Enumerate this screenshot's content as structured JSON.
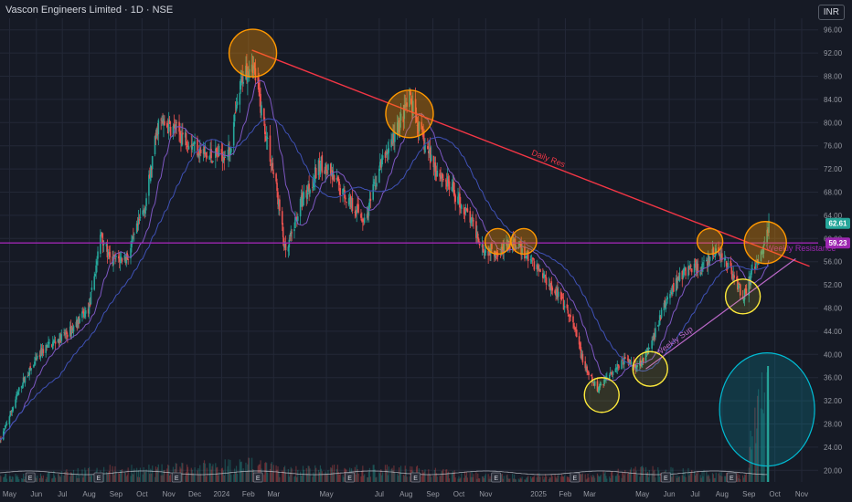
{
  "header": {
    "title": "Vascon Engineers Limited · 1D · NSE",
    "currency": "INR"
  },
  "colors": {
    "bg": "#161a25",
    "grid": "#232837",
    "up": "#26a69a",
    "down": "#ef5350",
    "ma1": "#7e57c2",
    "ma2": "#3f51b5",
    "daily_res": "#f23645",
    "horizontal": "#9c27b0",
    "weekly_sup": "#ba68c8",
    "circle": "#ff9800",
    "circle_low": "#ffeb3b",
    "vol_circle": "#00bcd4",
    "text": "#9598a1"
  },
  "chart_data": {
    "type": "candlestick",
    "title": "Vascon Engineers Limited · 1D · NSE",
    "ylim": [
      18,
      98
    ],
    "y_ticks": [
      "20.00",
      "24.00",
      "28.00",
      "32.00",
      "36.00",
      "40.00",
      "44.00",
      "48.00",
      "52.00",
      "56.00",
      "60.00",
      "64.00",
      "68.00",
      "72.00",
      "76.00",
      "80.00",
      "84.00",
      "88.00",
      "92.00",
      "96.00"
    ],
    "x_ticks": [
      "May",
      "Jun",
      "Jul",
      "Aug",
      "Sep",
      "Oct",
      "Nov",
      "Dec",
      "2024",
      "Feb",
      "Mar",
      "May",
      "Jul",
      "Aug",
      "Sep",
      "Oct",
      "Nov",
      "2025",
      "Feb",
      "Mar",
      "May",
      "Jun",
      "Jul",
      "Aug",
      "Sep",
      "Oct",
      "Nov"
    ],
    "price_path": [
      [
        "2023-04-20",
        25
      ],
      [
        "2023-05-15",
        35
      ],
      [
        "2023-06-10",
        41
      ],
      [
        "2023-07-10",
        44
      ],
      [
        "2023-08-01",
        48
      ],
      [
        "2023-08-15",
        61
      ],
      [
        "2023-08-25",
        56
      ],
      [
        "2023-09-15",
        57
      ],
      [
        "2023-10-05",
        66
      ],
      [
        "2023-10-20",
        80
      ],
      [
        "2023-11-05",
        79
      ],
      [
        "2023-11-25",
        77
      ],
      [
        "2023-12-15",
        74
      ],
      [
        "2024-01-10",
        75
      ],
      [
        "2024-01-25",
        88
      ],
      [
        "2024-02-05",
        91
      ],
      [
        "2024-02-20",
        79
      ],
      [
        "2024-03-05",
        68
      ],
      [
        "2024-03-15",
        57
      ],
      [
        "2024-04-01",
        66
      ],
      [
        "2024-04-25",
        73
      ],
      [
        "2024-05-10",
        70
      ],
      [
        "2024-05-25",
        67
      ],
      [
        "2024-06-15",
        63
      ],
      [
        "2024-07-01",
        72
      ],
      [
        "2024-07-25",
        80
      ],
      [
        "2024-08-05",
        84
      ],
      [
        "2024-08-20",
        77
      ],
      [
        "2024-09-05",
        72
      ],
      [
        "2024-09-25",
        68
      ],
      [
        "2024-10-15",
        63
      ],
      [
        "2024-10-31",
        58
      ],
      [
        "2024-11-15",
        58
      ],
      [
        "2024-12-05",
        59
      ],
      [
        "2024-12-25",
        56
      ],
      [
        "2025-01-10",
        53
      ],
      [
        "2025-01-25",
        50
      ],
      [
        "2025-02-10",
        45
      ],
      [
        "2025-02-25",
        37
      ],
      [
        "2025-03-10",
        34
      ],
      [
        "2025-03-25",
        37
      ],
      [
        "2025-04-10",
        39
      ],
      [
        "2025-04-25",
        38
      ],
      [
        "2025-05-10",
        41
      ],
      [
        "2025-05-25",
        48
      ],
      [
        "2025-06-10",
        53
      ],
      [
        "2025-06-25",
        55
      ],
      [
        "2025-07-10",
        55
      ],
      [
        "2025-07-25",
        58
      ],
      [
        "2025-08-10",
        55
      ],
      [
        "2025-08-25",
        50
      ],
      [
        "2025-09-05",
        54
      ],
      [
        "2025-09-15",
        57
      ],
      [
        "2025-09-24",
        62.61
      ]
    ],
    "volume_path": [
      [
        "2023-04-20",
        1
      ],
      [
        "2023-06-01",
        1
      ],
      [
        "2023-08-15",
        2
      ],
      [
        "2023-10-20",
        2
      ],
      [
        "2024-01-25",
        3
      ],
      [
        "2024-03-15",
        2
      ],
      [
        "2024-08-05",
        2
      ],
      [
        "2024-10-31",
        1
      ],
      [
        "2025-02-25",
        1
      ],
      [
        "2025-05-10",
        2
      ],
      [
        "2025-08-25",
        1
      ],
      [
        "2025-09-24",
        18
      ]
    ],
    "last_price": "62.61",
    "line_price": "59.23",
    "resistance_level": 59.23,
    "earnings_dates": [
      "2023-05-25",
      "2023-08-12",
      "2023-11-10",
      "2024-02-12",
      "2024-05-28",
      "2024-08-12",
      "2024-11-13",
      "2025-02-12",
      "2025-05-28",
      "2025-08-12"
    ],
    "earnings_label": "E",
    "annotations": {
      "daily_res": {
        "label": "Daily Res",
        "from": [
          "2024-02-05",
          92.5
        ],
        "to": [
          "2025-11-10",
          55.2
        ]
      },
      "weekly_resistance": {
        "label": "Weekly Resistance",
        "y": 59.23
      },
      "weekly_sup": {
        "label": "Weekly Sup",
        "from": [
          "2025-05-05",
          37.5
        ],
        "to": [
          "2025-10-25",
          56.5
        ]
      },
      "circles": [
        {
          "date": "2024-02-06",
          "y": 92.0,
          "style": "orange"
        },
        {
          "date": "2024-08-05",
          "y": 81.5,
          "style": "orange"
        },
        {
          "date": "2024-11-15",
          "y": 59.5,
          "style": "orange"
        },
        {
          "date": "2024-12-15",
          "y": 59.5,
          "style": "orange"
        },
        {
          "date": "2025-07-18",
          "y": 59.5,
          "style": "orange"
        },
        {
          "date": "2025-09-20",
          "y": 59.3,
          "style": "orange"
        },
        {
          "date": "2025-03-15",
          "y": 33.0,
          "style": "yellow"
        },
        {
          "date": "2025-05-10",
          "y": 37.5,
          "style": "yellow"
        },
        {
          "date": "2025-08-25",
          "y": 50.0,
          "style": "yellow"
        },
        {
          "date": "2025-09-22",
          "y": 30.5,
          "style": "cyan"
        }
      ]
    }
  }
}
